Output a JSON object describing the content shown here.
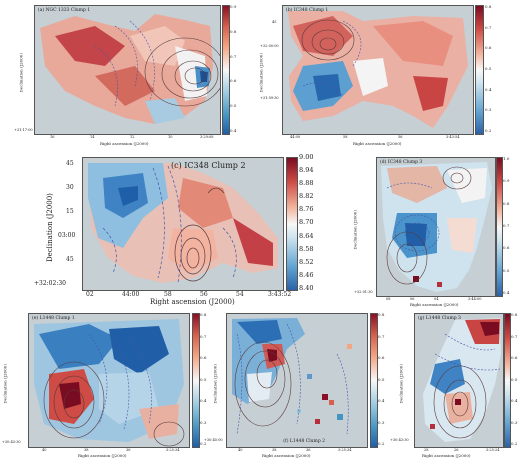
{
  "figure": {
    "panel_a": {
      "title": "(a) NGC 1333 Clump 1",
      "xlabel": "Right ascension (J2000)",
      "ylabel": "Declination (J2000)",
      "xticks": [
        "16",
        "14",
        "12",
        "10",
        "3:29:08"
      ],
      "yticks": [
        "+31:17:00"
      ],
      "cbar_ticks": [
        "0.9",
        "0.8",
        "0.7",
        "0.6",
        "0.5",
        "0.4"
      ]
    },
    "panel_b": {
      "title": "(b) IC348 Clump 1",
      "xlabel": "Right ascension (J2000)",
      "ylabel": "Declination (J2000)",
      "xticks": [
        "44:00",
        "58",
        "56",
        "3:43:54"
      ],
      "yticks": [
        "45",
        "+32:00:00",
        "+31:59:30"
      ],
      "cbar_ticks": [
        "0.8",
        "0.7",
        "0.6",
        "0.5",
        "0.4",
        "0.3",
        "0.2"
      ]
    },
    "panel_c": {
      "title": "(c) IC348 Clump 2",
      "xlabel": "Right ascension (J2000)",
      "ylabel": "Declination (J2000)",
      "xticks": [
        "02",
        "44:00",
        "58",
        "56",
        "54",
        "3:43:52"
      ],
      "yticks": [
        "45",
        "30",
        "15",
        "03:00",
        "45",
        "+32:02:30"
      ],
      "cbar_ticks": [
        "9.00",
        "8.94",
        "8.88",
        "8.82",
        "8.76",
        "8.70",
        "8.64",
        "8.58",
        "8.52",
        "8.46",
        "8.40"
      ]
    },
    "panel_d": {
      "title": "(d) IC348 Clump 3",
      "xlabel": "Right ascension (J2000)",
      "ylabel": "Declination (J2000)",
      "xticks": [
        "08",
        "06",
        "04",
        "3:44:00"
      ],
      "yticks": [
        "+32:01:30"
      ],
      "cbar_ticks": [
        "1.0",
        "0.9",
        "0.8",
        "0.7",
        "0.6",
        "0.5",
        "0.4"
      ]
    },
    "panel_e": {
      "title": "(e) L1448 Clump 1",
      "xlabel": "Right ascension (J2000)",
      "ylabel": "Declination (J2000)",
      "xticks": [
        "40",
        "38",
        "36",
        "3:25:34"
      ],
      "yticks": [
        "+30:43:30"
      ],
      "cbar_ticks": [
        "0.8",
        "0.7",
        "0.6",
        "0.5",
        "0.4",
        "0.3",
        "0.2"
      ]
    },
    "panel_f": {
      "title": "(f) L1448 Clump 2",
      "xlabel": "Right ascension (J2000)",
      "ylabel": "Declination (J2000)",
      "xticks": [
        "40",
        "38",
        "36",
        "3:25:34"
      ],
      "yticks": [
        "+30:45:00"
      ],
      "cbar_ticks": [
        "0.8",
        "0.7",
        "0.6",
        "0.5",
        "0.4",
        "0.3",
        "0.2"
      ]
    },
    "panel_g": {
      "title": "(g) L1448 Clump 3",
      "xlabel": "Right ascension (J2000)",
      "ylabel": "Declination (J2000)",
      "xticks": [
        "28",
        "26",
        "3:25:24"
      ],
      "yticks": [
        "+30:43:30"
      ],
      "cbar_ticks": [
        "0.8",
        "0.7",
        "0.6",
        "0.5",
        "0.4",
        "0.3",
        "0.2"
      ]
    }
  }
}
